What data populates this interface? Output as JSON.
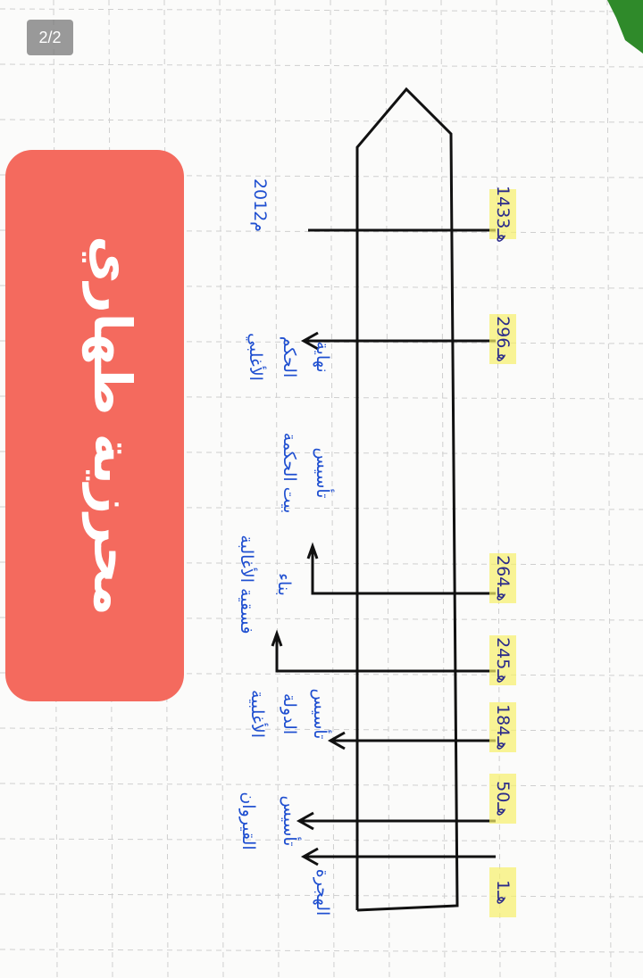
{
  "viewer": {
    "page_counter": "2/2"
  },
  "banner": {
    "text": "محرزية طهاري",
    "color": "#f46a5e"
  },
  "colors": {
    "ink_dates": "#2a2a8a",
    "ink_events": "#1f4fd0",
    "highlight": "#f7f06a",
    "grid": "#c8c8c8"
  },
  "timeline": {
    "entries": [
      {
        "date": "1هـ",
        "event": [
          "الهجرة"
        ]
      },
      {
        "date": "50هـ",
        "event": [
          "تأسيس",
          "القيروان"
        ]
      },
      {
        "date": "184هـ",
        "event": [
          "تأسيس",
          "الدولة",
          "الأغلبية"
        ]
      },
      {
        "date": "245هـ",
        "event": [
          "بناء",
          "فسقية الأغالبة"
        ]
      },
      {
        "date": "264هـ",
        "event": [
          "تأسيس",
          "بيت الحكمة"
        ]
      },
      {
        "date": "296هـ",
        "event": [
          "نهاية",
          "الحكم",
          "الأغلبي"
        ]
      },
      {
        "date": "1433هـ",
        "event": [
          "2012م"
        ]
      }
    ]
  }
}
